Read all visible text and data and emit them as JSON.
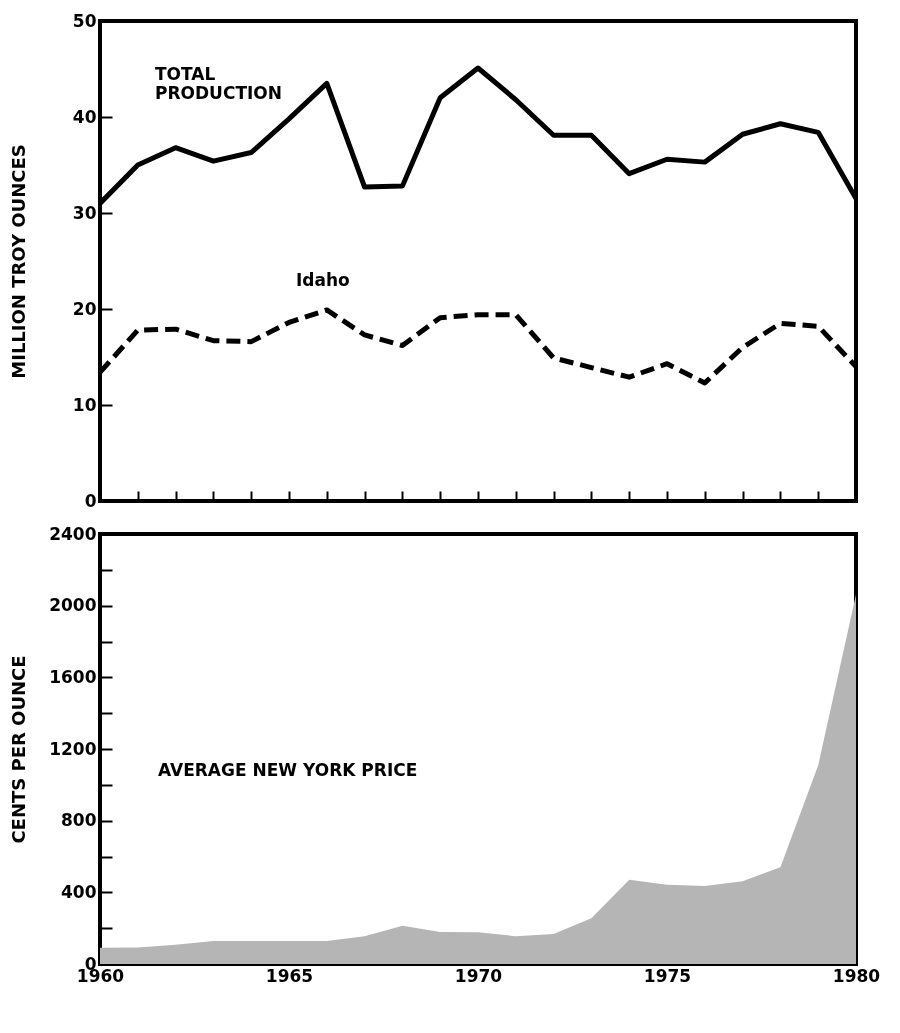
{
  "chart_data": [
    {
      "type": "line",
      "ylabel": "MILLION TROY OUNCES",
      "x": [
        1960,
        1961,
        1962,
        1963,
        1964,
        1965,
        1966,
        1967,
        1968,
        1969,
        1970,
        1971,
        1972,
        1973,
        1974,
        1975,
        1976,
        1977,
        1978,
        1979,
        1980
      ],
      "series": [
        {
          "name": "TOTAL PRODUCTION",
          "color": "#000000",
          "line_style": "solid",
          "values": [
            31,
            35,
            36.8,
            35.4,
            36.3,
            39.8,
            43.5,
            32.7,
            32.8,
            42,
            45.1,
            41.8,
            38.1,
            38.1,
            34.1,
            35.6,
            35.3,
            38.2,
            39.3,
            38.4,
            31.5
          ]
        },
        {
          "name": "Idaho",
          "color": "#000000",
          "line_style": "dashed",
          "values": [
            13.4,
            17.8,
            17.9,
            16.7,
            16.6,
            18.6,
            19.9,
            17.3,
            16.2,
            19.1,
            19.4,
            19.4,
            14.9,
            13.9,
            12.9,
            14.3,
            12.3,
            16,
            18.5,
            18.2,
            14
          ]
        }
      ],
      "xlim": [
        1960,
        1980
      ],
      "xticks": [
        {
          "value": 1960,
          "label": null
        },
        {
          "value": 1961,
          "label": null
        },
        {
          "value": 1962,
          "label": null
        },
        {
          "value": 1963,
          "label": null
        },
        {
          "value": 1964,
          "label": null
        },
        {
          "value": 1965,
          "label": null
        },
        {
          "value": 1966,
          "label": null
        },
        {
          "value": 1967,
          "label": null
        },
        {
          "value": 1968,
          "label": null
        },
        {
          "value": 1969,
          "label": null
        },
        {
          "value": 1970,
          "label": null
        },
        {
          "value": 1971,
          "label": null
        },
        {
          "value": 1972,
          "label": null
        },
        {
          "value": 1973,
          "label": null
        },
        {
          "value": 1974,
          "label": null
        },
        {
          "value": 1975,
          "label": null
        },
        {
          "value": 1976,
          "label": null
        },
        {
          "value": 1977,
          "label": null
        },
        {
          "value": 1978,
          "label": null
        },
        {
          "value": 1979,
          "label": null
        },
        {
          "value": 1980,
          "label": null
        }
      ],
      "ylim": [
        0,
        50
      ],
      "yticks": [
        0,
        10,
        20,
        30,
        40,
        50
      ],
      "tick_labels": "y"
    },
    {
      "type": "area",
      "ylabel": "CENTS PER OUNCE",
      "x": [
        1960,
        1961,
        1962,
        1963,
        1964,
        1965,
        1966,
        1967,
        1968,
        1969,
        1970,
        1971,
        1972,
        1973,
        1974,
        1975,
        1976,
        1977,
        1978,
        1979,
        1980
      ],
      "series": [
        {
          "name": "AVERAGE NEW YORK PRICE",
          "color": "#b5b5b5",
          "values": [
            91,
            92,
            108,
            128,
            129,
            129,
            129,
            155,
            214,
            179,
            177,
            155,
            168,
            256,
            470,
            442,
            435,
            462,
            540,
            1109,
            2063
          ]
        }
      ],
      "xlim": [
        1960,
        1980
      ],
      "xticks": [
        1960,
        {
          "value": 1961,
          "label": null
        },
        {
          "value": 1962,
          "label": null
        },
        {
          "value": 1963,
          "label": null
        },
        {
          "value": 1964,
          "label": null
        },
        1965,
        {
          "value": 1966,
          "label": null
        },
        {
          "value": 1967,
          "label": null
        },
        {
          "value": 1968,
          "label": null
        },
        {
          "value": 1969,
          "label": null
        },
        1970,
        {
          "value": 1971,
          "label": null
        },
        {
          "value": 1972,
          "label": null
        },
        {
          "value": 1973,
          "label": null
        },
        {
          "value": 1974,
          "label": null
        },
        1975,
        {
          "value": 1976,
          "label": null
        },
        {
          "value": 1977,
          "label": null
        },
        {
          "value": 1978,
          "label": null
        },
        {
          "value": 1979,
          "label": null
        },
        1980
      ],
      "ylim": [
        0,
        2400
      ],
      "yticks": [
        0,
        {
          "value": 200,
          "label": null
        },
        400,
        {
          "value": 600,
          "label": null
        },
        800,
        {
          "value": 1000,
          "label": null
        },
        1200,
        {
          "value": 1400,
          "label": null
        },
        1600,
        {
          "value": 1800,
          "label": null
        },
        2000,
        {
          "value": 2200,
          "label": null
        },
        2400
      ]
    }
  ]
}
